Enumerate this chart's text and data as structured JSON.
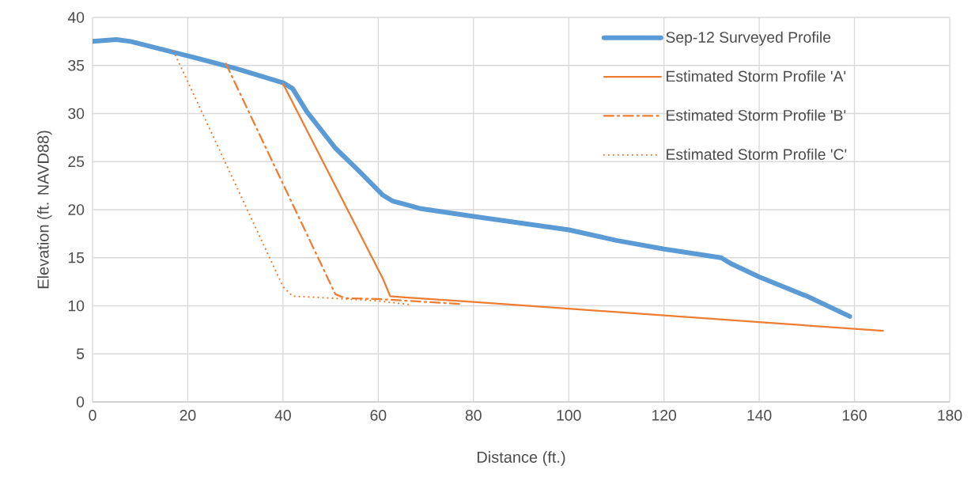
{
  "chart_data": {
    "type": "line",
    "xlabel": "Distance (ft.)",
    "ylabel": "Elevation (ft. NAVD88)",
    "xlim": [
      0,
      180
    ],
    "xticks": [
      0,
      20,
      40,
      60,
      80,
      100,
      120,
      140,
      160,
      180
    ],
    "ylim": [
      0,
      40
    ],
    "yticks": [
      0,
      5,
      10,
      15,
      20,
      25,
      30,
      35,
      40
    ],
    "grid": true,
    "legend": "top right",
    "marker": "none",
    "series": [
      {
        "name": "Sep-12 Surveyed Profile",
        "color": "#5b9bd5",
        "line_style": "solid",
        "x": [
          0,
          5,
          8,
          20,
          30,
          40,
          42,
          45,
          51,
          56,
          61,
          63,
          66,
          69,
          80,
          100,
          110,
          120,
          132,
          134,
          140,
          150,
          159
        ],
        "values": [
          37.5,
          37.7,
          37.5,
          36,
          34.7,
          33.2,
          32.6,
          30.2,
          26.4,
          24,
          21.5,
          20.9,
          20.5,
          20.1,
          19.3,
          17.9,
          16.8,
          15.9,
          15,
          14.4,
          13,
          11,
          8.9
        ]
      },
      {
        "name": "Estimated Storm Profile 'A'",
        "color": "#ed7d31",
        "line_style": "solid",
        "x": [
          40,
          61,
          62.5,
          65,
          80,
          100,
          120,
          140,
          166
        ],
        "values": [
          33.1,
          12.8,
          11,
          10.9,
          10.4,
          9.7,
          9,
          8.3,
          7.4
        ]
      },
      {
        "name": "Estimated Storm Profile 'B'",
        "color": "#ed7d31",
        "line_style": "dashdot",
        "x": [
          28,
          51,
          53,
          60,
          70,
          77
        ],
        "values": [
          35.2,
          11.2,
          10.8,
          10.7,
          10.4,
          10.2
        ]
      },
      {
        "name": "Estimated Storm Profile 'C'",
        "color": "#ed7d31",
        "line_style": "dotted",
        "x": [
          17,
          40,
          42,
          50,
          60,
          67
        ],
        "values": [
          36.5,
          12,
          11,
          10.8,
          10.5,
          10.1
        ]
      }
    ]
  }
}
